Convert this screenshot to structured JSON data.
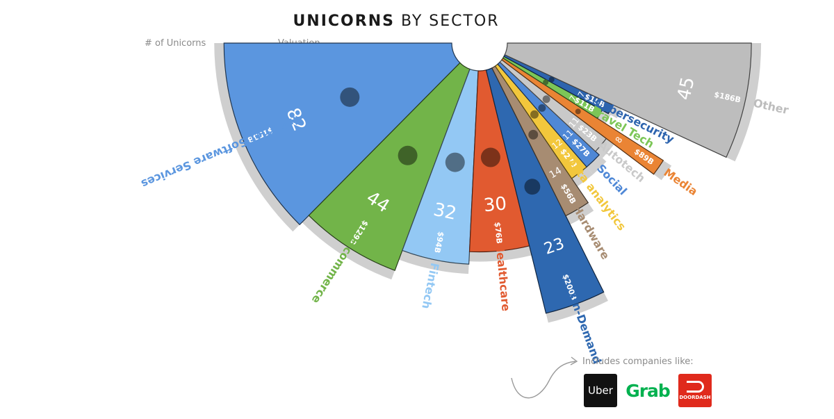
{
  "title": {
    "bold": "UNICORNS",
    "rest": "BY SECTOR"
  },
  "headers": {
    "count": "# of Unicorns",
    "valuation": "Valuation"
  },
  "note": "Includes companies like:",
  "logos": {
    "uber": "Uber",
    "grab": "Grab",
    "doordash": "DOORDASH"
  },
  "chart_data": {
    "type": "polar-bar",
    "title": "UNICORNS BY SECTOR",
    "series": [
      {
        "name": "# of Unicorns"
      },
      {
        "name": "Valuation"
      }
    ],
    "sectors": [
      {
        "name": "Internet Software Services",
        "count": "82",
        "valuation": "$153B",
        "color": "#5b96df",
        "icon": "globe-icon"
      },
      {
        "name": "E-commerce",
        "count": "44",
        "valuation": "$129B",
        "color": "#72b449",
        "icon": "shopping-cart-icon"
      },
      {
        "name": "Fintech",
        "count": "32",
        "valuation": "$94B",
        "color": "#93c8f4",
        "icon": "credit-card-icon"
      },
      {
        "name": "Healthcare",
        "count": "30",
        "valuation": "$76B",
        "color": "#e15a30",
        "icon": "medical-cross-icon"
      },
      {
        "name": "On-Demand",
        "count": "23",
        "valuation": "$200B",
        "color": "#2e68b0",
        "icon": "thumbs-up-icon"
      },
      {
        "name": "Hardware",
        "count": "14",
        "valuation": "$56B",
        "color": "#a78c72",
        "icon": "chip-icon"
      },
      {
        "name": "Data analytics",
        "count": "12",
        "valuation": "$27B",
        "color": "#f2c73c",
        "icon": "bar-chart-icon"
      },
      {
        "name": "Social",
        "count": "11",
        "valuation": "$27B",
        "color": "#4f88d6",
        "icon": "people-icon"
      },
      {
        "name": "Autotech",
        "count": "11",
        "valuation": "$23B",
        "color": "#c9c9c9",
        "icon": "car-icon"
      },
      {
        "name": "Media",
        "count": "8",
        "valuation": "$89B",
        "color": "#ea8434",
        "icon": "film-icon"
      },
      {
        "name": "Travel Tech",
        "count": "7",
        "valuation": "$11B",
        "color": "#7cc657",
        "icon": "plane-icon"
      },
      {
        "name": "Cybersecurity",
        "count": "7",
        "valuation": "$15B",
        "color": "#2d64ae",
        "icon": "lock-icon"
      },
      {
        "name": "Other",
        "count": "45",
        "valuation": "$186B",
        "color": "#bdbdbd",
        "icon": ""
      }
    ]
  }
}
